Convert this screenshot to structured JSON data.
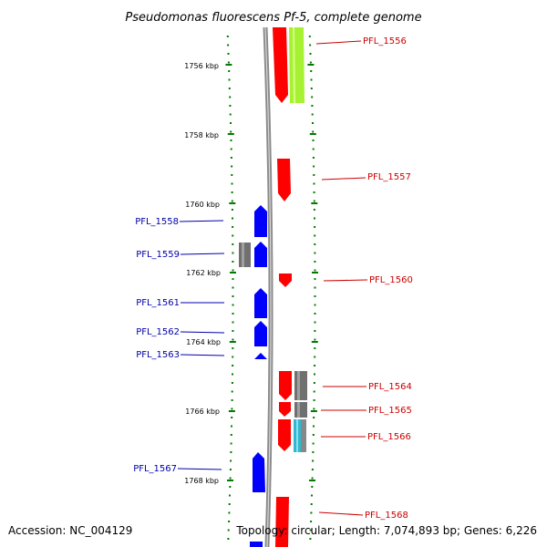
{
  "title": "Pseudomonas fluorescens Pf-5, complete genome",
  "footer": {
    "accession": "Accession: NC_004129",
    "topology": "Topology: circular; Length: 7,074,893 bp; Genes: 6,226"
  },
  "colors": {
    "forward_cds": "#ff0000",
    "reverse_cds": "#0000ff",
    "forward_label": "#cc0000",
    "reverse_label": "#0000aa",
    "backbone": "#8a8a8a",
    "tick": "#007a00",
    "feature_green": "#a6f232",
    "feature_gray": "#707070",
    "feature_cyan": "#30b8d0"
  },
  "kbp_ticks": [
    "1756 kbp",
    "1758 kbp",
    "1760 kbp",
    "1762 kbp",
    "1764 kbp",
    "1766 kbp",
    "1768 kbp"
  ],
  "genes": [
    {
      "label": "PFL_1556",
      "strand": "forward"
    },
    {
      "label": "PFL_1557",
      "strand": "forward"
    },
    {
      "label": "PFL_1558",
      "strand": "reverse"
    },
    {
      "label": "PFL_1559",
      "strand": "reverse"
    },
    {
      "label": "PFL_1560",
      "strand": "forward"
    },
    {
      "label": "PFL_1561",
      "strand": "reverse"
    },
    {
      "label": "PFL_1562",
      "strand": "reverse"
    },
    {
      "label": "PFL_1563",
      "strand": "reverse"
    },
    {
      "label": "PFL_1564",
      "strand": "forward"
    },
    {
      "label": "PFL_1565",
      "strand": "forward"
    },
    {
      "label": "PFL_1566",
      "strand": "forward"
    },
    {
      "label": "PFL_1567",
      "strand": "reverse"
    },
    {
      "label": "PFL_1568",
      "strand": "forward"
    }
  ]
}
